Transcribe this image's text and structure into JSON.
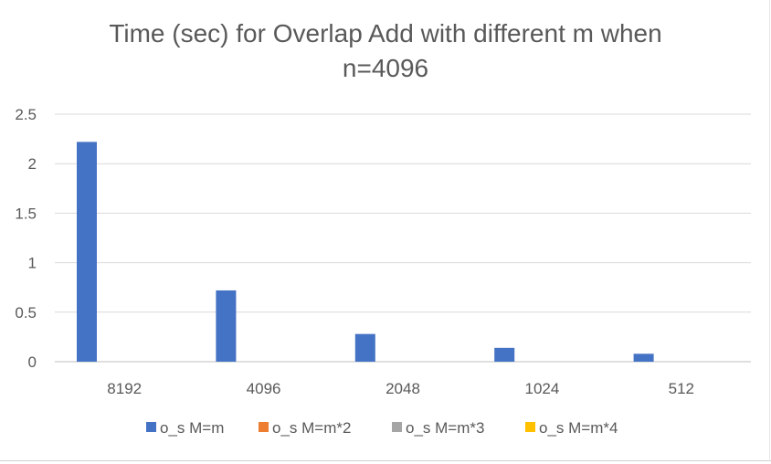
{
  "chart_data": {
    "type": "bar",
    "title_lines": [
      "Time (sec) for Overlap Add with different m when",
      "n=4096"
    ],
    "categories": [
      "8192",
      "4096",
      "2048",
      "1024",
      "512"
    ],
    "series": [
      {
        "name": "o_s M=m",
        "color": "#4472C4",
        "values": [
          2.22,
          0.72,
          0.28,
          0.14,
          0.08
        ]
      },
      {
        "name": "o_s M=m*2",
        "color": "#ED7D31",
        "values": [
          0,
          0,
          0,
          0,
          0
        ]
      },
      {
        "name": "o_s M=m*3",
        "color": "#A5A5A5",
        "values": [
          0,
          0,
          0,
          0,
          0
        ]
      },
      {
        "name": "o_s M=m*4",
        "color": "#FFC000",
        "values": [
          0,
          0,
          0,
          0,
          0
        ]
      }
    ],
    "yticks": [
      "0",
      "0.5",
      "1",
      "1.5",
      "2",
      "2.5"
    ],
    "ylim": [
      0,
      2.5
    ],
    "grid": true,
    "legend_position": "bottom"
  }
}
